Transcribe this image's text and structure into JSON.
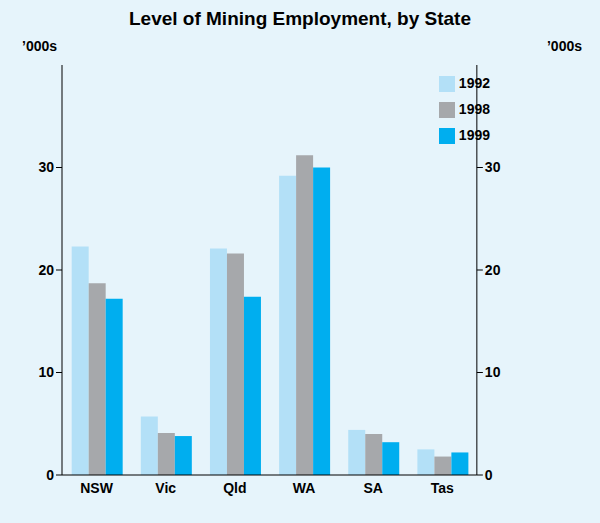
{
  "chart_data": {
    "type": "bar",
    "title": "Level of Mining Employment, by State",
    "y_label": "’000s",
    "categories": [
      "NSW",
      "Vic",
      "Qld",
      "WA",
      "SA",
      "Tas"
    ],
    "series": [
      {
        "name": "1992",
        "color": "#b3e0f7",
        "values": [
          22.3,
          5.7,
          22.1,
          29.2,
          4.4,
          2.5
        ]
      },
      {
        "name": "1998",
        "color": "#a6a8ab",
        "values": [
          18.7,
          4.1,
          21.6,
          31.2,
          4.0,
          1.8
        ]
      },
      {
        "name": "1999",
        "color": "#00aeef",
        "values": [
          17.2,
          3.8,
          17.4,
          30.0,
          3.2,
          2.2
        ]
      }
    ],
    "ylim": [
      0,
      40
    ],
    "yticks": [
      0,
      10,
      20,
      30
    ],
    "y2lim": [
      0,
      40
    ],
    "y2ticks": [
      0,
      10,
      20,
      30
    ],
    "legend": "top right",
    "grid": false
  }
}
